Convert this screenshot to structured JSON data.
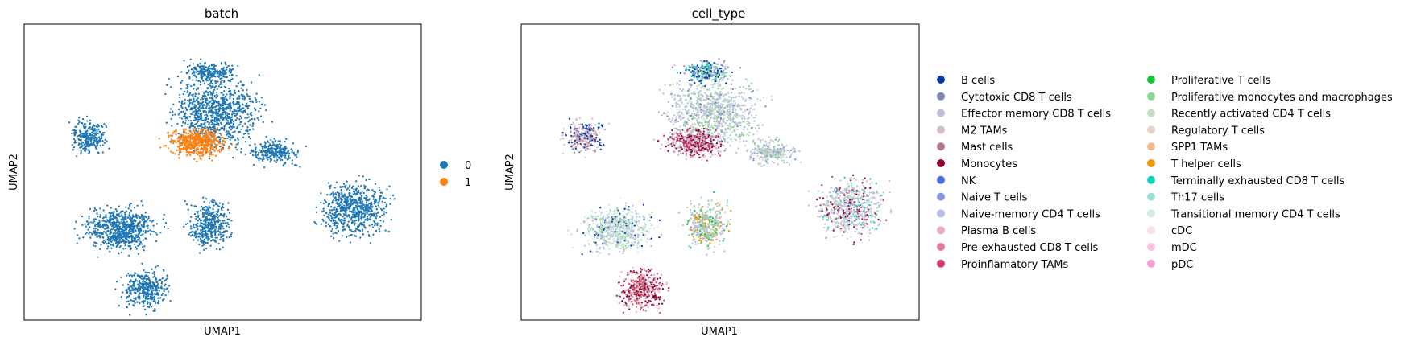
{
  "chart_data": [
    {
      "type": "scatter",
      "title": "batch",
      "xlabel": "UMAP1",
      "ylabel": "UMAP2",
      "xticks": [],
      "yticks": [],
      "grid": false,
      "legend_placement": "right",
      "legend": [
        {
          "label": "0",
          "color": "#1f77b4"
        },
        {
          "label": "1",
          "color": "#ff7f0e"
        }
      ],
      "series": [
        {
          "name": "0",
          "color": "#1f77b4",
          "region": "all clusters except upper-middle lobe"
        },
        {
          "name": "1",
          "color": "#ff7f0e",
          "region": "upper-middle lobe"
        }
      ]
    },
    {
      "type": "scatter",
      "title": "cell_type",
      "xlabel": "UMAP1",
      "ylabel": "UMAP2",
      "xticks": [],
      "yticks": [],
      "grid": false,
      "legend_placement": "right",
      "legend_columns": 2,
      "legend": [
        {
          "label": "B cells",
          "color": "#023fa5"
        },
        {
          "label": "Cytotoxic CD8 T cells",
          "color": "#7d87b9"
        },
        {
          "label": "Effector memory CD8 T cells",
          "color": "#bec1d4"
        },
        {
          "label": "M2 TAMs",
          "color": "#d6bcc0"
        },
        {
          "label": "Mast cells",
          "color": "#bb7784"
        },
        {
          "label": "Monocytes",
          "color": "#8e063b"
        },
        {
          "label": "NK",
          "color": "#4a6fe3"
        },
        {
          "label": "Naive T cells",
          "color": "#8595e1"
        },
        {
          "label": "Naive-memory CD4 T cells",
          "color": "#b5bbe3"
        },
        {
          "label": "Plasma B cells",
          "color": "#e6afb9"
        },
        {
          "label": "Pre-exhausted CD8 T cells",
          "color": "#e07b91"
        },
        {
          "label": "Proinflamatory TAMs",
          "color": "#d33f6a"
        },
        {
          "label": "Proliferative T cells",
          "color": "#11c638"
        },
        {
          "label": "Proliferative monocytes and macrophages",
          "color": "#8dd593"
        },
        {
          "label": "Recently activated CD4 T cells",
          "color": "#c6dec7"
        },
        {
          "label": "Regulatory T cells",
          "color": "#ead3c6"
        },
        {
          "label": "SPP1 TAMs",
          "color": "#f0b98d"
        },
        {
          "label": "T helper cells",
          "color": "#ef9708"
        },
        {
          "label": "Terminally exhausted CD8 T cells",
          "color": "#0fcfc0"
        },
        {
          "label": "Th17 cells",
          "color": "#9cded6"
        },
        {
          "label": "Transitional memory CD4 T cells",
          "color": "#d5eae7"
        },
        {
          "label": "cDC",
          "color": "#f3e1eb"
        },
        {
          "label": "mDC",
          "color": "#f6c4e1"
        },
        {
          "label": "pDC",
          "color": "#f79cd4"
        }
      ]
    }
  ]
}
